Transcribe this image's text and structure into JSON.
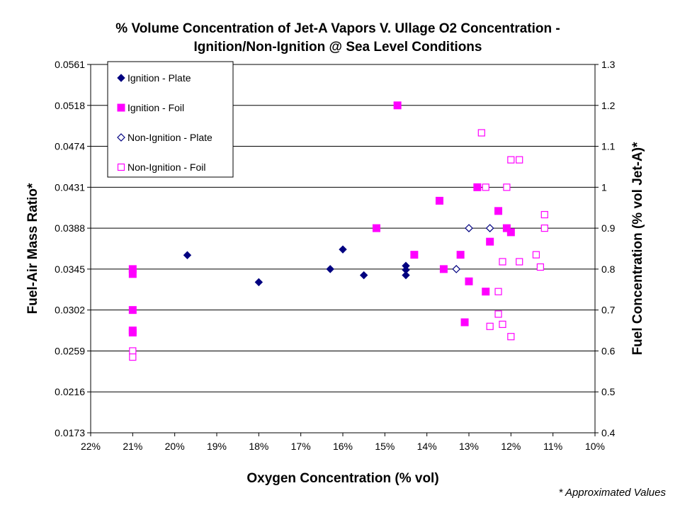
{
  "chart_data": {
    "type": "scatter",
    "title_line1": "% Volume Concentration of Jet-A Vapors V. Ullage O2 Concentration -",
    "title_line2": "Ignition/Non-Ignition @ Sea Level Conditions",
    "xlabel": "Oxygen Concentration (% vol)",
    "ylabel": "Fuel-Air Mass Ratio*",
    "y2label": "Fuel Concentration (% vol Jet-A)*",
    "footnote": "* Approximated Values",
    "x_ticks": [
      "22%",
      "21%",
      "20%",
      "19%",
      "18%",
      "17%",
      "16%",
      "15%",
      "14%",
      "13%",
      "12%",
      "11%",
      "10%"
    ],
    "xlim": [
      22,
      10
    ],
    "y_ticks": [
      "0.0173",
      "0.0216",
      "0.0259",
      "0.0302",
      "0.0345",
      "0.0388",
      "0.0431",
      "0.0474",
      "0.0518",
      "0.0561"
    ],
    "y2_ticks": [
      "0.4",
      "0.5",
      "0.6",
      "0.7",
      "0.8",
      "0.9",
      "1",
      "1.1",
      "1.2",
      "1.3"
    ],
    "y2lim": [
      0.4,
      1.3
    ],
    "grid": "horizontal",
    "legend_position": "top-left",
    "series": [
      {
        "name": "Ignition - Plate",
        "marker": "diamond-filled",
        "color": "#000080",
        "points": [
          [
            19.7,
            0.834
          ],
          [
            18.0,
            0.768
          ],
          [
            16.3,
            0.8
          ],
          [
            16.0,
            0.848
          ],
          [
            15.5,
            0.785
          ],
          [
            14.5,
            0.808
          ],
          [
            14.5,
            0.798
          ],
          [
            14.5,
            0.785
          ]
        ]
      },
      {
        "name": "Ignition - Foil",
        "marker": "square-filled",
        "color": "#ff00ff",
        "points": [
          [
            21.0,
            0.8
          ],
          [
            21.0,
            0.788
          ],
          [
            21.0,
            0.7
          ],
          [
            21.0,
            0.65
          ],
          [
            21.0,
            0.645
          ],
          [
            14.7,
            1.2
          ],
          [
            15.2,
            0.9
          ],
          [
            14.3,
            0.835
          ],
          [
            13.7,
            0.967
          ],
          [
            13.6,
            0.8
          ],
          [
            13.2,
            0.835
          ],
          [
            13.0,
            0.77
          ],
          [
            13.1,
            0.67
          ],
          [
            12.8,
            1.0
          ],
          [
            12.6,
            0.745
          ],
          [
            12.5,
            0.867
          ],
          [
            12.3,
            0.942
          ],
          [
            12.1,
            0.9
          ],
          [
            12.0,
            0.89
          ]
        ]
      },
      {
        "name": "Non-Ignition - Plate",
        "marker": "diamond-open",
        "color": "#000080",
        "points": [
          [
            13.3,
            0.8
          ],
          [
            13.0,
            0.9
          ],
          [
            12.5,
            0.9
          ]
        ]
      },
      {
        "name": "Non-Ignition - Foil",
        "marker": "square-open",
        "color": "#ff00ff",
        "points": [
          [
            21.0,
            0.6
          ],
          [
            21.0,
            0.585
          ],
          [
            12.7,
            1.133
          ],
          [
            12.6,
            1.0
          ],
          [
            12.5,
            0.66
          ],
          [
            12.3,
            0.745
          ],
          [
            12.3,
            0.69
          ],
          [
            12.2,
            0.818
          ],
          [
            12.2,
            0.665
          ],
          [
            12.1,
            1.0
          ],
          [
            12.0,
            1.067
          ],
          [
            12.0,
            0.635
          ],
          [
            11.8,
            1.067
          ],
          [
            11.8,
            0.818
          ],
          [
            11.4,
            0.835
          ],
          [
            11.3,
            0.805
          ],
          [
            11.2,
            0.933
          ],
          [
            11.2,
            0.9
          ]
        ]
      }
    ]
  }
}
